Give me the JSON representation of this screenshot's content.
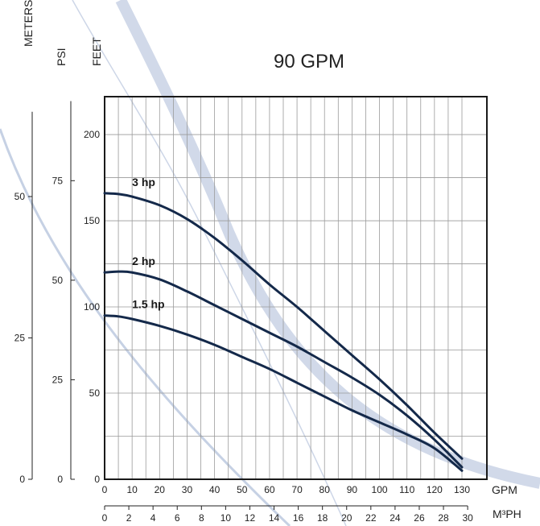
{
  "chart_data": {
    "type": "line",
    "title": "90 GPM",
    "x_unit_primary": "GPM",
    "x_unit_secondary": "M³PH",
    "axis_titles_left": {
      "meters": "METERS",
      "psi": "PSI",
      "feet": "FEET"
    },
    "xlim": [
      0,
      130
    ],
    "ylim_feet": [
      0,
      222
    ],
    "x_ticks_gpm": [
      "0",
      "10",
      "20",
      "30",
      "40",
      "50",
      "60",
      "70",
      "80",
      "90",
      "100",
      "110",
      "120",
      "130"
    ],
    "x_ticks_m3ph": [
      "0",
      "2",
      "4",
      "6",
      "8",
      "10",
      "12",
      "14",
      "16",
      "18",
      "20",
      "22",
      "24",
      "26",
      "28",
      "30"
    ],
    "y_ticks_feet": [
      "0",
      "50",
      "100",
      "150",
      "200"
    ],
    "y_ticks_psi": [
      "0",
      "25",
      "50",
      "75"
    ],
    "y_ticks_meters": [
      "0",
      "25",
      "50"
    ],
    "grid": true,
    "series": [
      {
        "name": "3 hp",
        "color": "#14294a",
        "x": [
          0,
          5,
          10,
          20,
          30,
          40,
          50,
          60,
          70,
          80,
          90,
          100,
          110,
          120,
          130
        ],
        "y": [
          166,
          165.5,
          164,
          159,
          151,
          140,
          127,
          113,
          100,
          86,
          72,
          58,
          43,
          27,
          12
        ]
      },
      {
        "name": "2 hp",
        "color": "#14294a",
        "x": [
          0,
          5,
          10,
          20,
          30,
          40,
          50,
          60,
          70,
          80,
          90,
          100,
          110,
          120,
          130
        ],
        "y": [
          120,
          120.5,
          120,
          116,
          109,
          101,
          93,
          85,
          77,
          68,
          59,
          49,
          37,
          23,
          7
        ]
      },
      {
        "name": "1.5 hp",
        "color": "#14294a",
        "x": [
          0,
          5,
          10,
          20,
          30,
          40,
          50,
          60,
          70,
          80,
          90,
          100,
          110,
          120,
          130
        ],
        "y": [
          95,
          94.5,
          93,
          89,
          84,
          78,
          71,
          64,
          56,
          48,
          40,
          33,
          26,
          18,
          5
        ]
      }
    ]
  }
}
